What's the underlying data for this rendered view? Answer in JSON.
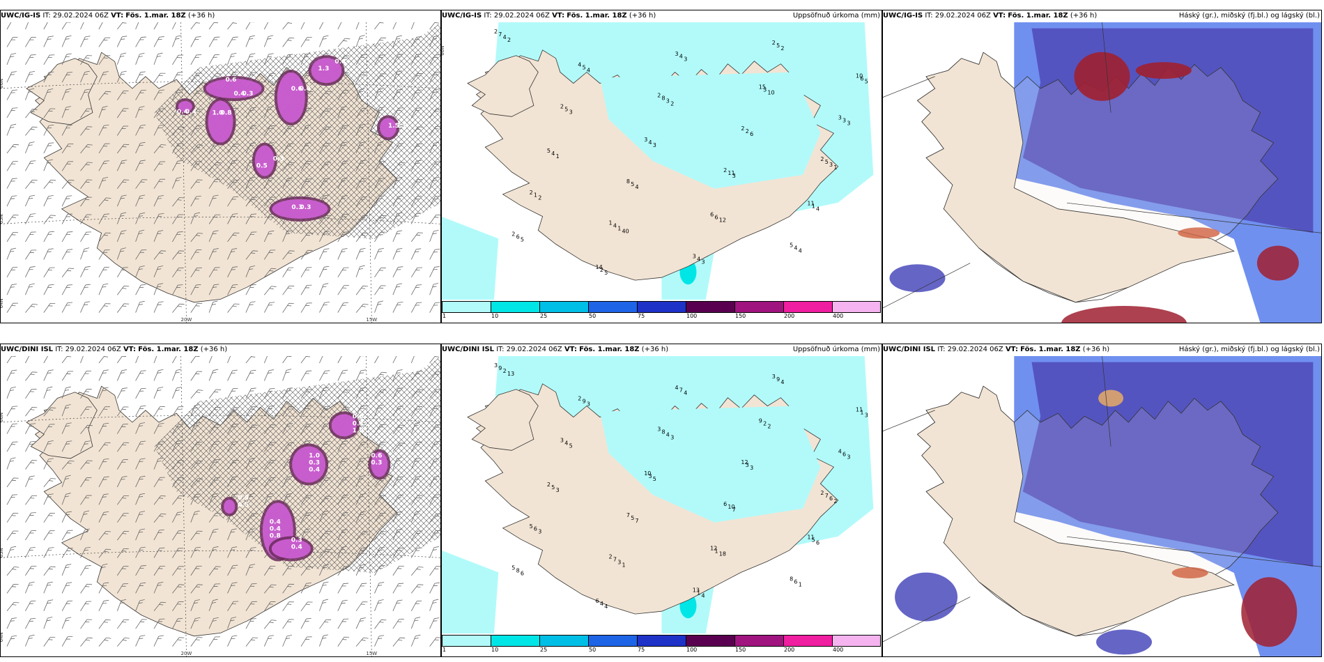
{
  "panels": [
    {
      "model": "UWC/IG-IS",
      "it_label": "IT:",
      "it": "29.02.2024 06Z",
      "vt_label": "VT:",
      "vt": "Fös. 1.mar. 18Z",
      "lead": "(+36 h)",
      "right_title": "",
      "type": "wind",
      "lat_labels": [
        "66N",
        "65N",
        "64N"
      ],
      "lon_labels": [
        "20W",
        "15W"
      ],
      "values": [
        "0.6",
        "0.8",
        "0.4",
        "1.3",
        "0.3",
        "1.0",
        "0.5",
        "0.4",
        "0.3",
        "1.0",
        "0.6",
        "0.4",
        "0.3",
        "1.5",
        "0.3",
        "0.4",
        "0.4"
      ]
    },
    {
      "model": "UWC/IG-IS",
      "it_label": "IT:",
      "it": "29.02.2024 06Z",
      "vt_label": "VT:",
      "vt": "Fös. 1.mar. 18Z",
      "lead": "(+36 h)",
      "right_title": "Uppsöfnuð úrkoma (mm)",
      "type": "precip",
      "lat_labels": [
        "66N"
      ],
      "values": [
        "2",
        "2",
        "2",
        "1",
        "2",
        "2",
        "2",
        "2",
        "3",
        "3",
        "8",
        "5",
        "4",
        "2",
        "2",
        "3",
        "10",
        "3",
        "11",
        "14",
        "15",
        "5",
        "6",
        "7",
        "8",
        "5",
        "4",
        "5",
        "5",
        "11",
        "6",
        "4",
        "3",
        "5",
        "4",
        "5",
        "2",
        "1",
        "4",
        "6",
        "4",
        "1",
        "2",
        "3",
        "4",
        "6",
        "4",
        "3",
        "3",
        "1",
        "2",
        "3",
        "3",
        "5",
        "3",
        "3",
        "4",
        "4",
        "4",
        "6",
        "2",
        "3",
        "5",
        "3",
        "4",
        "5",
        "10",
        "1",
        "12",
        "2",
        "2",
        "1",
        "40"
      ],
      "colorbar_labels": [
        "1",
        "10",
        "25",
        "50",
        "75",
        "100",
        "150",
        "200",
        "400"
      ],
      "colorbar_colors": [
        "#b2fafa",
        "#00e6e6",
        "#00bfe6",
        "#1e64e6",
        "#1e32c8",
        "#5a0050",
        "#a0147f",
        "#f01ea0",
        "#f5b4f0"
      ]
    },
    {
      "model": "UWC/IG-IS",
      "it_label": "IT:",
      "it": "29.02.2024 06Z",
      "vt_label": "VT:",
      "vt": "Fös. 1.mar. 18Z",
      "lead": "(+36 h)",
      "right_title": "Háský (gr.), miðský (fj.bl.) og lágský (bl.)",
      "type": "cloud"
    },
    {
      "model": "UWC/DINI ISL",
      "it_label": "IT:",
      "it": "29.02.2024 06Z",
      "vt_label": "VT:",
      "vt": "Fös. 1.mar. 18Z",
      "lead": "(+36 h)",
      "right_title": "",
      "type": "wind",
      "lat_labels": [
        "66N",
        "65N",
        "64N"
      ],
      "lon_labels": [
        "20W",
        "15W"
      ],
      "values": [
        "0.4",
        "1.0",
        "0.6",
        "0.3",
        "0.4",
        "0.5",
        "0.8",
        "0.4",
        "1.0",
        "0.6",
        "0.3",
        "0.5",
        "0.4",
        "0.3",
        "0.4"
      ]
    },
    {
      "model": "UWC/DINI ISL",
      "it_label": "IT:",
      "it": "29.02.2024 06Z",
      "vt_label": "VT:",
      "vt": "Fös. 1.mar. 18Z",
      "lead": "(+36 h)",
      "right_title": "Uppsöfnuð úrkoma (mm)",
      "type": "precip",
      "lat_labels": [],
      "values": [
        "3",
        "3",
        "2",
        "2",
        "3",
        "3",
        "6",
        "5",
        "4",
        "4",
        "7",
        "8",
        "2",
        "12",
        "5",
        "13",
        "11",
        "10",
        "11",
        "6",
        "9",
        "2",
        "12",
        "9",
        "8",
        "7",
        "7",
        "9",
        "4",
        "10",
        "8",
        "7",
        "6",
        "5",
        "6",
        "9",
        "3",
        "6",
        "1",
        "1",
        "3",
        "5",
        "4",
        "2",
        "5",
        "1",
        "2",
        "4",
        "6",
        "3",
        "4",
        "5",
        "7",
        "6",
        "4",
        "3",
        "7",
        "1",
        "3",
        "3",
        "3",
        "4",
        "3",
        "5",
        "6",
        "4",
        "2",
        "3",
        "18",
        "13",
        "3",
        "2",
        "1"
      ],
      "colorbar_labels": [
        "1",
        "10",
        "25",
        "50",
        "75",
        "100",
        "150",
        "200",
        "400"
      ],
      "colorbar_colors": [
        "#b2fafa",
        "#00e6e6",
        "#00bfe6",
        "#1e64e6",
        "#1e32c8",
        "#5a0050",
        "#a0147f",
        "#f01ea0",
        "#f5b4f0"
      ]
    },
    {
      "model": "UWC/DINI ISL",
      "it_label": "IT:",
      "it": "29.02.2024 06Z",
      "vt_label": "VT:",
      "vt": "Fös. 1.mar. 18Z",
      "lead": "(+36 h)",
      "right_title": "Háský (gr.), miðský (fj.bl.) og lágský (bl.)",
      "type": "cloud"
    }
  ],
  "colors": {
    "land": "#f2e4d4",
    "precip_light": "#b2fafa",
    "precip_mid": "#00e6e6",
    "magenta": "#d060d8",
    "purple_dark": "#6a2a5a",
    "cloud_blue": "#5454c0",
    "cloud_light": "#7090f0",
    "cloud_red": "#a02030"
  }
}
